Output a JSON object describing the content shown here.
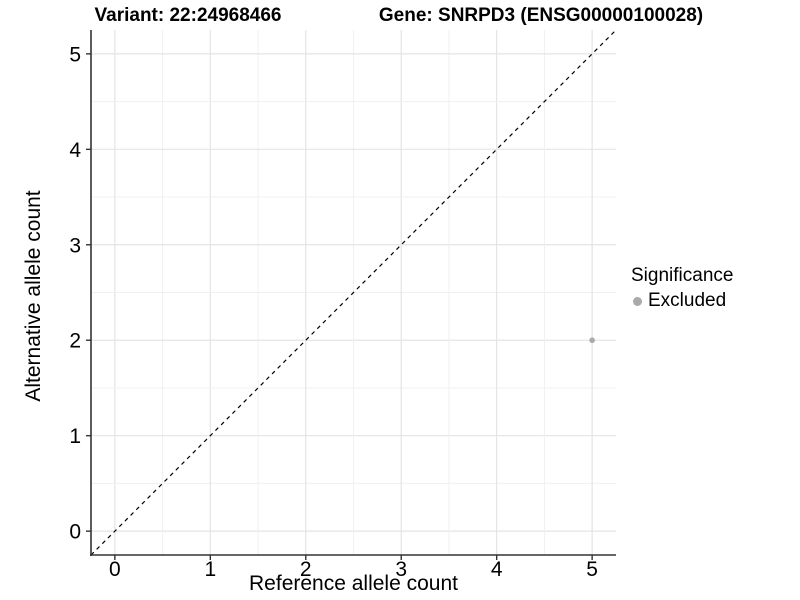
{
  "chart_data": {
    "type": "scatter",
    "title_left": "Variant: 22:24968466",
    "title_right": "Gene: SNRPD3 (ENSG00000100028)",
    "xlabel": "Reference allele count",
    "ylabel": "Alternative allele count",
    "xlim": [
      -0.25,
      5.25
    ],
    "ylim": [
      -0.25,
      5.25
    ],
    "xticks": [
      0,
      1,
      2,
      3,
      4,
      5
    ],
    "yticks": [
      0,
      1,
      2,
      3,
      4,
      5
    ],
    "minor_step": 0.5,
    "grid": true,
    "points": [
      {
        "x": 5,
        "y": 2,
        "group": "Excluded",
        "color": "#aaaaaa"
      }
    ],
    "reference_line": {
      "type": "diagonal-identity",
      "style": "dashed",
      "color": "#000000"
    },
    "legend": {
      "title": "Significance",
      "position": "right",
      "items": [
        {
          "label": "Excluded",
          "color": "#aaaaaa"
        }
      ]
    },
    "colors": {
      "background": "#ffffff",
      "axis_line": "#333333",
      "tick_text": "#000000",
      "grid_major": "#e4e4e4",
      "grid_minor": "#f0f0f0"
    }
  }
}
